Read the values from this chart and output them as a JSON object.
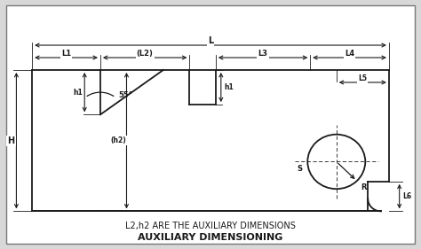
{
  "bg_color": "#d8d8d8",
  "drawing_bg": "#ffffff",
  "line_color": "#1a1a1a",
  "title": "AUXILIARY DIMENSIONING",
  "subtitle": "L2,h2 ARE THE AUXILIARY DIMENSIONS",
  "title_fontsize": 8,
  "subtitle_fontsize": 7,
  "lw": 1.3,
  "dim_lw": 0.8,
  "xlim": [
    0,
    160
  ],
  "ylim": [
    0,
    100
  ]
}
